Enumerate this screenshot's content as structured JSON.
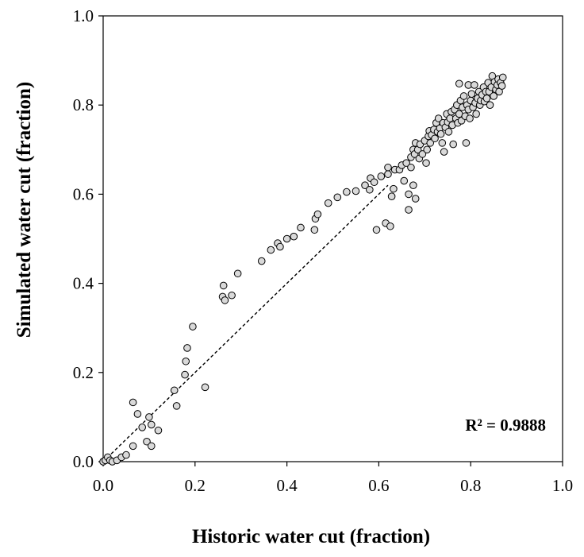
{
  "chart_data": {
    "type": "scatter",
    "xlabel": "Historic water cut (fraction)",
    "ylabel": "Simulated water cut (fraction)",
    "xlim": [
      0,
      1
    ],
    "ylim": [
      0,
      1
    ],
    "xticks": [
      "0.0",
      "0.2",
      "0.4",
      "0.6",
      "0.8",
      "1.0"
    ],
    "yticks": [
      "0.0",
      "0.2",
      "0.4",
      "0.6",
      "0.8",
      "1.0"
    ],
    "grid": false,
    "annotation": "R² = 0.9888",
    "marker_fill": "#d9d9d9",
    "marker_edge": "#000000",
    "trendline": {
      "style": "dashed",
      "x": [
        0.0,
        0.62
      ],
      "y": [
        0.0,
        0.62
      ]
    },
    "points": [
      [
        0.0,
        0.0
      ],
      [
        0.005,
        0.003
      ],
      [
        0.01,
        0.01
      ],
      [
        0.015,
        0.003
      ],
      [
        0.02,
        0.0
      ],
      [
        0.03,
        0.003
      ],
      [
        0.04,
        0.01
      ],
      [
        0.05,
        0.015
      ],
      [
        0.065,
        0.133
      ],
      [
        0.065,
        0.035
      ],
      [
        0.075,
        0.107
      ],
      [
        0.085,
        0.077
      ],
      [
        0.095,
        0.045
      ],
      [
        0.1,
        0.1
      ],
      [
        0.105,
        0.083
      ],
      [
        0.105,
        0.035
      ],
      [
        0.12,
        0.07
      ],
      [
        0.155,
        0.16
      ],
      [
        0.16,
        0.125
      ],
      [
        0.178,
        0.195
      ],
      [
        0.18,
        0.225
      ],
      [
        0.183,
        0.255
      ],
      [
        0.195,
        0.303
      ],
      [
        0.222,
        0.167
      ],
      [
        0.26,
        0.37
      ],
      [
        0.262,
        0.395
      ],
      [
        0.265,
        0.362
      ],
      [
        0.28,
        0.373
      ],
      [
        0.293,
        0.422
      ],
      [
        0.345,
        0.45
      ],
      [
        0.365,
        0.475
      ],
      [
        0.38,
        0.49
      ],
      [
        0.385,
        0.482
      ],
      [
        0.4,
        0.5
      ],
      [
        0.415,
        0.505
      ],
      [
        0.43,
        0.525
      ],
      [
        0.46,
        0.52
      ],
      [
        0.462,
        0.545
      ],
      [
        0.467,
        0.555
      ],
      [
        0.49,
        0.58
      ],
      [
        0.51,
        0.593
      ],
      [
        0.53,
        0.605
      ],
      [
        0.55,
        0.607
      ],
      [
        0.57,
        0.62
      ],
      [
        0.58,
        0.61
      ],
      [
        0.582,
        0.636
      ],
      [
        0.59,
        0.627
      ],
      [
        0.595,
        0.52
      ],
      [
        0.605,
        0.64
      ],
      [
        0.615,
        0.535
      ],
      [
        0.62,
        0.66
      ],
      [
        0.62,
        0.645
      ],
      [
        0.625,
        0.528
      ],
      [
        0.628,
        0.595
      ],
      [
        0.632,
        0.612
      ],
      [
        0.635,
        0.655
      ],
      [
        0.645,
        0.655
      ],
      [
        0.65,
        0.665
      ],
      [
        0.655,
        0.63
      ],
      [
        0.66,
        0.67
      ],
      [
        0.665,
        0.6
      ],
      [
        0.665,
        0.565
      ],
      [
        0.67,
        0.683
      ],
      [
        0.67,
        0.66
      ],
      [
        0.675,
        0.62
      ],
      [
        0.675,
        0.7
      ],
      [
        0.678,
        0.69
      ],
      [
        0.68,
        0.715
      ],
      [
        0.68,
        0.59
      ],
      [
        0.685,
        0.7
      ],
      [
        0.688,
        0.68
      ],
      [
        0.69,
        0.712
      ],
      [
        0.695,
        0.69
      ],
      [
        0.7,
        0.72
      ],
      [
        0.703,
        0.67
      ],
      [
        0.705,
        0.7
      ],
      [
        0.708,
        0.73
      ],
      [
        0.71,
        0.742
      ],
      [
        0.712,
        0.715
      ],
      [
        0.715,
        0.733
      ],
      [
        0.72,
        0.745
      ],
      [
        0.722,
        0.725
      ],
      [
        0.725,
        0.76
      ],
      [
        0.728,
        0.74
      ],
      [
        0.73,
        0.77
      ],
      [
        0.733,
        0.748
      ],
      [
        0.735,
        0.735
      ],
      [
        0.738,
        0.715
      ],
      [
        0.74,
        0.76
      ],
      [
        0.742,
        0.695
      ],
      [
        0.745,
        0.75
      ],
      [
        0.748,
        0.78
      ],
      [
        0.75,
        0.762
      ],
      [
        0.752,
        0.74
      ],
      [
        0.755,
        0.77
      ],
      [
        0.758,
        0.785
      ],
      [
        0.76,
        0.755
      ],
      [
        0.762,
        0.712
      ],
      [
        0.765,
        0.79
      ],
      [
        0.768,
        0.77
      ],
      [
        0.77,
        0.8
      ],
      [
        0.772,
        0.76
      ],
      [
        0.775,
        0.848
      ],
      [
        0.775,
        0.78
      ],
      [
        0.778,
        0.81
      ],
      [
        0.78,
        0.765
      ],
      [
        0.782,
        0.795
      ],
      [
        0.785,
        0.82
      ],
      [
        0.788,
        0.775
      ],
      [
        0.79,
        0.715
      ],
      [
        0.792,
        0.8
      ],
      [
        0.795,
        0.845
      ],
      [
        0.795,
        0.79
      ],
      [
        0.798,
        0.77
      ],
      [
        0.8,
        0.81
      ],
      [
        0.802,
        0.825
      ],
      [
        0.805,
        0.795
      ],
      [
        0.808,
        0.845
      ],
      [
        0.81,
        0.805
      ],
      [
        0.812,
        0.78
      ],
      [
        0.815,
        0.815
      ],
      [
        0.818,
        0.83
      ],
      [
        0.82,
        0.8
      ],
      [
        0.822,
        0.81
      ],
      [
        0.825,
        0.823
      ],
      [
        0.828,
        0.84
      ],
      [
        0.83,
        0.808
      ],
      [
        0.833,
        0.83
      ],
      [
        0.835,
        0.815
      ],
      [
        0.838,
        0.85
      ],
      [
        0.84,
        0.83
      ],
      [
        0.842,
        0.8
      ],
      [
        0.845,
        0.84
      ],
      [
        0.847,
        0.865
      ],
      [
        0.85,
        0.82
      ],
      [
        0.852,
        0.852
      ],
      [
        0.855,
        0.835
      ],
      [
        0.858,
        0.845
      ],
      [
        0.86,
        0.858
      ],
      [
        0.862,
        0.83
      ],
      [
        0.865,
        0.85
      ],
      [
        0.868,
        0.843
      ],
      [
        0.87,
        0.862
      ]
    ]
  }
}
